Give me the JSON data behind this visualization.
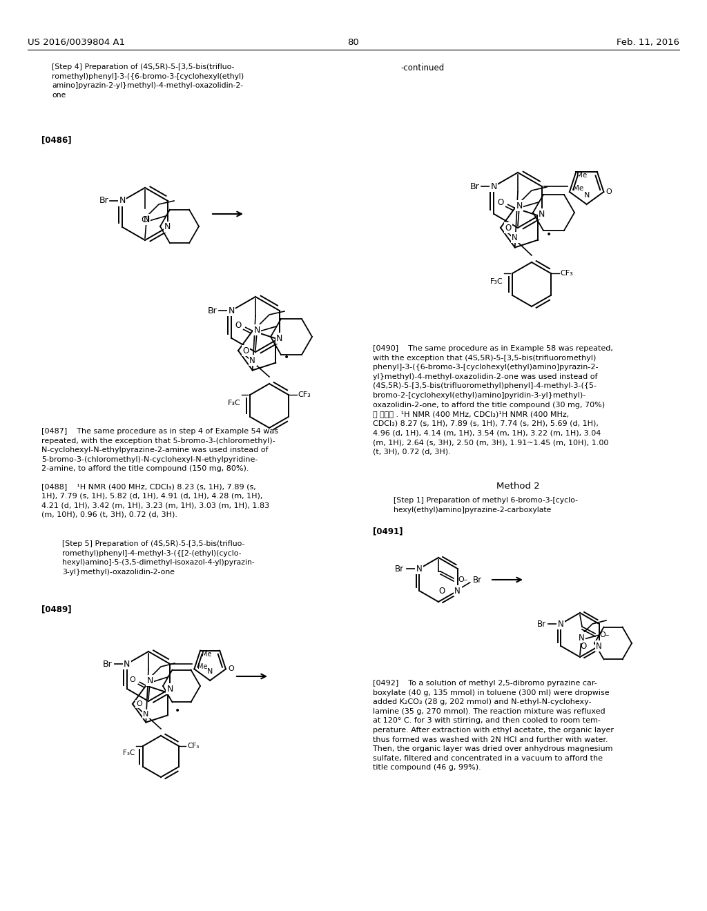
{
  "bg": "#ffffff",
  "header_left": "US 2016/0039804 A1",
  "header_center": "80",
  "header_right": "Feb. 11, 2016",
  "step4_title": "[Step 4] Preparation of (4S,5R)-5-[3,5-bis(trifluo-\nromethyl)phenyl]-3-({6-bromo-3-[cyclohexyl(ethyl)\namino]pyrazin-2-yl}methyl)-4-methyl-oxazolidin-2-\none",
  "tag0486": "[0486]",
  "tag0487_text": "[0487]    The same procedure as in step 4 of Example 54 was\nrepeated, with the exception that 5-bromo-3-(chloromethyl)-\nN-cyclohexyl-N-ethylpyrazine-2-amine was used instead of\n5-bromo-3-(chloromethyl)-N-cyclohexyl-N-ethylpyridine-\n2-amine, to afford the title compound (150 mg, 80%).",
  "tag0488_text": "[0488]    ¹H NMR (400 MHz, CDCl₃) 8.23 (s, 1H), 7.89 (s,\n1H), 7.79 (s, 1H), 5.82 (d, 1H), 4.91 (d, 1H), 4.28 (m, 1H),\n4.21 (d, 1H), 3.42 (m, 1H), 3.23 (m, 1H), 3.03 (m, 1H), 1.83\n(m, 10H), 0.96 (t, 3H), 0.72 (d, 3H).",
  "step5_title": "[Step 5] Preparation of (4S,5R)-5-[3,5-bis(trifluo-\nromethyl)phenyl]-4-methyl-3-({[2-(ethyl)(cyclo-\nhexyl)amino]-5-(3,5-dimethyl-isoxazol-4-yl)pyrazin-\n3-yl}methyl)-oxazolidin-2-one",
  "tag0489": "[0489]",
  "continued": "-continued",
  "tag0490_text": "[0490]    The same procedure as in Example 58 was repeated,\nwith the exception that (4S,5R)-5-[3,5-bis(trifluoromethyl)\nphenyl]-3-({6-bromo-3-[cyclohexyl(ethyl)amino]pyrazin-2-\nyl}methyl)-4-methyl-oxazolidin-2-one was used instead of\n(4S,5R)-5-[3,5-bis(trifluoromethyl)phenyl]-4-methyl-3-({5-\nbromo-2-[cyclohexyl(ethyl)amino]pyridin-3-yl}methyl)-\noxazolidin-2-one, to afford the title compound (30 mg, 70%)\n을 얻었다 . ¹H NMR (400 MHz, CDCl₃)¹H NMR (400 MHz,\nCDCl₃) 8.27 (s, 1H), 7.89 (s, 1H), 7.74 (s, 2H), 5.69 (d, 1H),\n4.96 (d, 1H), 4.14 (m, 1H), 3.54 (m, 1H), 3.22 (m, 1H), 3.04\n(m, 1H), 2.64 (s, 3H), 2.50 (m, 3H), 1.91~1.45 (m, 10H), 1.00\n(t, 3H), 0.72 (d, 3H).",
  "method2": "Method 2",
  "step1_m2_title": "[Step 1] Preparation of methyl 6-bromo-3-[cyclo-\nhexyl(ethyl)amino]pyrazine-2-carboxylate",
  "tag0491": "[0491]",
  "tag0492_text": "[0492]    To a solution of methyl 2,5-dibromo pyrazine car-\nboxylate (40 g, 135 mmol) in toluene (300 ml) were dropwise\nadded K₂CO₃ (28 g, 202 mmol) and N-ethyl-N-cyclohexy-\nlamine (35 g, 270 mmol). The reaction mixture was refluxed\nat 120° C. for 3 with stirring, and then cooled to room tem-\nperature. After extraction with ethyl acetate, the organic layer\nthus formed was washed with 2N HCl and further with water.\nThen, the organic layer was dried over anhydrous magnesium\nsulfate, filtered and concentrated in a vacuum to afford the\ntitle compound (46 g, 99%)."
}
